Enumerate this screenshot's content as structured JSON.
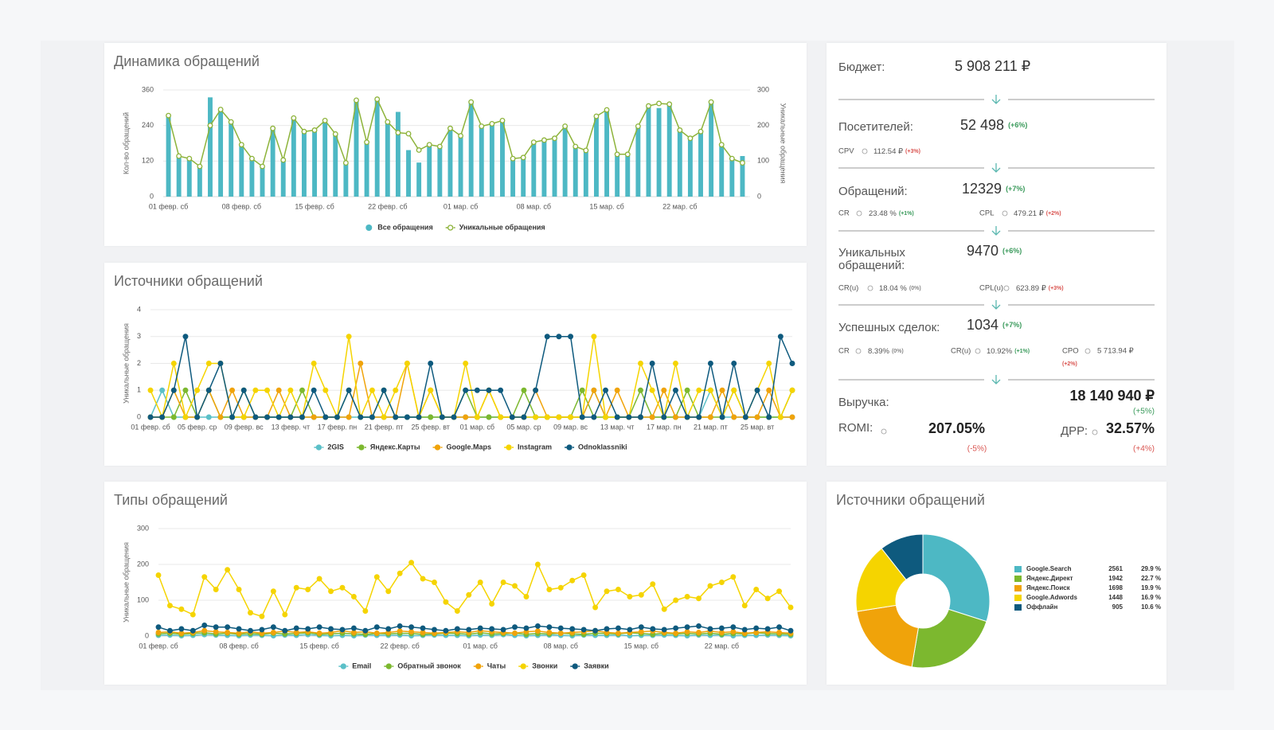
{
  "chart_data": [
    {
      "type": "bar",
      "title": "Динамика обращений",
      "ylabel": "Кол-во обращений",
      "y2label": "Уникальные обращения",
      "categories": [
        "01 февр. сб",
        null,
        null,
        null,
        null,
        null,
        null,
        "08 февр. сб",
        null,
        null,
        null,
        null,
        null,
        null,
        "15 февр. сб",
        null,
        null,
        null,
        null,
        null,
        null,
        "22 февр. сб",
        null,
        null,
        null,
        null,
        null,
        null,
        "01 мар. сб",
        null,
        null,
        null,
        null,
        null,
        null,
        "08 мар. сб",
        null,
        null,
        null,
        null,
        null,
        null,
        "15 мар. сб",
        null,
        null,
        null,
        null,
        null,
        null,
        "22 мар. сб",
        null,
        null,
        null,
        null,
        null,
        null
      ],
      "series": [
        {
          "name": "Все обращения",
          "color": "#4db8c4",
          "values": [
            275,
            137,
            129,
            102,
            335,
            294,
            253,
            176,
            129,
            102,
            231,
            124,
            266,
            220,
            225,
            258,
            212,
            115,
            327,
            184,
            330,
            253,
            286,
            157,
            115,
            176,
            170,
            231,
            206,
            321,
            239,
            247,
            258,
            129,
            132,
            184,
            192,
            198,
            239,
            170,
            157,
            272,
            294,
            143,
            143,
            239,
            308,
            299,
            313,
            225,
            198,
            220,
            321,
            176,
            129,
            137
          ]
        },
        {
          "name": "Уникальные обращения",
          "color": "#8db33a",
          "type": "line",
          "axis": "y2",
          "markers": "hollow",
          "values": [
            228,
            114,
            107,
            85,
            200,
            245,
            210,
            146,
            107,
            85,
            192,
            103,
            221,
            183,
            187,
            214,
            176,
            95,
            271,
            153,
            274,
            210,
            180,
            177,
            131,
            146,
            141,
            192,
            171,
            266,
            198,
            205,
            214,
            107,
            110,
            153,
            159,
            164,
            198,
            141,
            130,
            226,
            244,
            119,
            119,
            198,
            255,
            262,
            260,
            187,
            164,
            183,
            266,
            146,
            107,
            95
          ]
        }
      ],
      "ylim": [
        0,
        360
      ],
      "yticks": [
        0,
        120,
        240,
        360
      ],
      "y2lim": [
        0,
        300
      ],
      "y2ticks": [
        0,
        100,
        200,
        300
      ],
      "grid": true
    },
    {
      "type": "line",
      "title": "Источники обращений",
      "ylabel": "Уникальные обращения",
      "categories": [
        "01 февр. сб",
        null,
        null,
        null,
        "05 февр. ср",
        null,
        null,
        null,
        "09 февр. вс",
        null,
        null,
        null,
        "13 февр. чт",
        null,
        null,
        null,
        "17 февр. пн",
        null,
        null,
        null,
        "21 февр. пт",
        null,
        null,
        null,
        "25 февр. вт",
        null,
        null,
        null,
        "01 мар. сб",
        null,
        null,
        null,
        "05 мар. ср",
        null,
        null,
        null,
        "09 мар. вс",
        null,
        null,
        null,
        "13 мар. чт",
        null,
        null,
        null,
        "17 мар. пн",
        null,
        null,
        null,
        "21 мар. пт",
        null,
        null,
        null,
        "25 мар. вт",
        null,
        null,
        null
      ],
      "series": [
        {
          "name": "2GIS",
          "color": "#5bc0c8",
          "values": [
            0,
            1,
            0,
            0,
            0,
            0,
            0,
            0,
            0,
            0,
            0,
            0,
            0,
            0,
            0,
            0,
            0,
            0,
            0,
            0,
            0,
            0,
            0,
            0,
            0,
            0,
            0,
            0,
            0,
            0,
            0,
            0,
            0,
            0,
            0,
            0,
            0,
            0,
            1,
            0,
            0,
            0,
            0,
            0,
            0,
            0,
            0,
            0,
            1,
            0,
            0,
            0,
            0,
            0,
            0,
            0
          ]
        },
        {
          "name": "Яндекс.Карты",
          "color": "#7cb82f",
          "values": [
            0,
            0,
            0,
            1,
            0,
            1,
            0,
            0,
            1,
            0,
            0,
            0,
            0,
            1,
            0,
            0,
            0,
            1,
            0,
            0,
            1,
            0,
            0,
            0,
            0,
            0,
            0,
            1,
            0,
            0,
            0,
            0,
            1,
            0,
            0,
            0,
            0,
            1,
            0,
            0,
            0,
            0,
            1,
            0,
            0,
            0,
            1,
            0,
            0,
            0,
            1,
            0,
            0,
            0,
            0,
            1
          ]
        },
        {
          "name": "Google.Maps",
          "color": "#f0a30a",
          "values": [
            0,
            0,
            1,
            0,
            0,
            1,
            0,
            1,
            0,
            0,
            0,
            1,
            0,
            0,
            0,
            0,
            0,
            0,
            2,
            0,
            0,
            0,
            2,
            0,
            1,
            0,
            0,
            0,
            0,
            1,
            0,
            0,
            0,
            1,
            0,
            0,
            0,
            0,
            1,
            0,
            1,
            0,
            0,
            0,
            1,
            0,
            0,
            0,
            0,
            1,
            0,
            0,
            0,
            1,
            0,
            0
          ]
        },
        {
          "name": "Instagram",
          "color": "#f5d400",
          "values": [
            1,
            0,
            2,
            0,
            1,
            2,
            2,
            0,
            0,
            1,
            1,
            0,
            1,
            0,
            2,
            1,
            0,
            3,
            0,
            1,
            0,
            1,
            2,
            0,
            1,
            0,
            0,
            2,
            0,
            1,
            0,
            0,
            0,
            0,
            0,
            0,
            0,
            0,
            3,
            0,
            0,
            0,
            2,
            1,
            0,
            2,
            0,
            1,
            1,
            0,
            1,
            0,
            1,
            2,
            0,
            1
          ]
        },
        {
          "name": "Odnoklassniki",
          "color": "#0e5a7e",
          "values": [
            0,
            0,
            1,
            3,
            0,
            1,
            2,
            0,
            1,
            0,
            0,
            0,
            0,
            0,
            1,
            0,
            0,
            1,
            0,
            0,
            1,
            0,
            0,
            0,
            2,
            0,
            0,
            1,
            1,
            1,
            1,
            0,
            0,
            1,
            3,
            3,
            3,
            0,
            0,
            1,
            0,
            0,
            0,
            2,
            0,
            1,
            0,
            0,
            2,
            0,
            2,
            0,
            1,
            0,
            3,
            2
          ]
        }
      ],
      "ylim": [
        0,
        4
      ],
      "yticks": [
        0,
        1,
        2,
        3,
        4
      ],
      "grid": true
    },
    {
      "type": "line",
      "title": "Типы обращений",
      "ylabel": "Уникальные обращения",
      "categories": [
        "01 февр. сб",
        null,
        null,
        null,
        null,
        null,
        null,
        "08 февр. сб",
        null,
        null,
        null,
        null,
        null,
        null,
        "15 февр. сб",
        null,
        null,
        null,
        null,
        null,
        null,
        "22 февр. сб",
        null,
        null,
        null,
        null,
        null,
        null,
        "01 мар. сб",
        null,
        null,
        null,
        null,
        null,
        null,
        "08 мар. сб",
        null,
        null,
        null,
        null,
        null,
        null,
        "15 мар. сб",
        null,
        null,
        null,
        null,
        null,
        null,
        "22 мар. сб",
        null,
        null,
        null,
        null,
        null,
        null
      ],
      "series": [
        {
          "name": "Email",
          "color": "#5bc0c8",
          "values": [
            2,
            3,
            1,
            2,
            4,
            3,
            2,
            1,
            3,
            2,
            1,
            3,
            2,
            4,
            2,
            1,
            2,
            1,
            3,
            2,
            2,
            3,
            1,
            2,
            3,
            2,
            2,
            1,
            3,
            2,
            4,
            2,
            1,
            2,
            3,
            2,
            1,
            3,
            2,
            2,
            3,
            1,
            2,
            2,
            3,
            2,
            1,
            3,
            2,
            3,
            1,
            2,
            2,
            3,
            2,
            1
          ]
        },
        {
          "name": "Обратный звонок",
          "color": "#7cb82f",
          "values": [
            6,
            8,
            5,
            7,
            9,
            6,
            8,
            5,
            7,
            5,
            8,
            6,
            7,
            9,
            5,
            6,
            8,
            6,
            5,
            7,
            6,
            8,
            7,
            5,
            6,
            8,
            7,
            5,
            9,
            6,
            7,
            8,
            5,
            7,
            6,
            8,
            6,
            5,
            8,
            7,
            6,
            9,
            7,
            5,
            8,
            6,
            7,
            6,
            8,
            5,
            7,
            6,
            9,
            7,
            6,
            5
          ]
        },
        {
          "name": "Чаты",
          "color": "#f0a30a",
          "values": [
            10,
            12,
            8,
            10,
            15,
            12,
            10,
            8,
            12,
            8,
            10,
            14,
            10,
            12,
            8,
            10,
            15,
            10,
            12,
            8,
            10,
            14,
            12,
            10,
            8,
            10,
            12,
            10,
            15,
            12,
            10,
            8,
            12,
            14,
            10,
            8,
            10,
            12,
            15,
            10,
            8,
            10,
            12,
            14,
            10,
            8,
            12,
            10,
            14,
            10,
            12,
            8,
            10,
            12,
            10,
            8
          ]
        },
        {
          "name": "Звонки",
          "color": "#f5d400",
          "values": [
            170,
            85,
            75,
            60,
            165,
            130,
            185,
            130,
            65,
            55,
            125,
            60,
            135,
            130,
            160,
            125,
            135,
            110,
            70,
            165,
            125,
            175,
            205,
            160,
            150,
            95,
            70,
            115,
            150,
            90,
            150,
            140,
            110,
            200,
            130,
            135,
            155,
            170,
            80,
            125,
            130,
            110,
            115,
            145,
            75,
            100,
            110,
            105,
            140,
            150,
            165,
            85,
            130,
            105,
            125,
            80
          ]
        },
        {
          "name": "Заявки",
          "color": "#0e5a7e",
          "values": [
            25,
            15,
            20,
            15,
            30,
            25,
            25,
            20,
            15,
            18,
            25,
            15,
            22,
            20,
            25,
            20,
            18,
            22,
            15,
            25,
            20,
            28,
            25,
            22,
            18,
            15,
            20,
            18,
            22,
            20,
            18,
            25,
            22,
            28,
            25,
            22,
            20,
            18,
            15,
            20,
            22,
            18,
            25,
            20,
            18,
            22,
            25,
            28,
            20,
            22,
            25,
            18,
            22,
            20,
            25,
            15
          ]
        }
      ],
      "ylim": [
        0,
        300
      ],
      "yticks": [
        0,
        100,
        200,
        300
      ],
      "grid": true
    },
    {
      "type": "pie",
      "title": "Источники обращений",
      "categories": [
        "Google.Search",
        "Яндекс.Директ",
        "Яндекс.Поиск",
        "Google.Adwords",
        "Оффлайн"
      ],
      "values": [
        2561,
        1942,
        1698,
        1448,
        905
      ],
      "share_labels": [
        "29.9 %",
        "22.7 %",
        "19.9 %",
        "16.9 %",
        "10.6 %"
      ],
      "colors": [
        "#4db8c4",
        "#7cb82f",
        "#f0a30a",
        "#f5d400",
        "#0e5a7e"
      ]
    }
  ],
  "kpi": {
    "budget": {
      "label": "Бюджет:",
      "value": "5 908 211 ₽"
    },
    "visitors": {
      "label": "Посетителей:",
      "value": "52 498",
      "change": "(+6%)",
      "cpv": {
        "label": "CPV",
        "value": "112.54 ₽",
        "change": "(+3%)"
      }
    },
    "requests": {
      "label": "Обращений:",
      "value": "12329",
      "change": "(+7%)",
      "cr": {
        "label": "CR",
        "value": "23.48 %",
        "change": "(+1%)"
      },
      "cpl": {
        "label": "CPL",
        "value": "479.21 ₽",
        "change": "(+2%)"
      }
    },
    "unique": {
      "label_lines": [
        "Уникальных",
        "обращений:"
      ],
      "value": "9470",
      "change": "(+6%)",
      "cr": {
        "label": "CR(u)",
        "value": "18.04 %",
        "change": "(0%)"
      },
      "cpl": {
        "label": "CPL(u)",
        "value": "623.89 ₽",
        "change": "(+3%)"
      }
    },
    "deals": {
      "label": "Успешных сделок:",
      "value": "1034",
      "change": "(+7%)",
      "cr": {
        "label": "CR",
        "value": "8.39%",
        "change": "(0%)"
      },
      "cr_u": {
        "label": "CR(u)",
        "value": "10.92%",
        "change": "(+1%)"
      },
      "cpo": {
        "label": "CPO",
        "value": "5 713.94 ₽",
        "change": "(+2%)"
      }
    },
    "revenue": {
      "label": "Выручка:",
      "value": "18 140 940 ₽",
      "change": "(+5%)"
    },
    "romi": {
      "label": "ROMI:",
      "value": "207.05%",
      "change": "(-5%)"
    },
    "drr": {
      "label": "ДРР:",
      "value": "32.57%",
      "change": "(+4%)"
    }
  }
}
